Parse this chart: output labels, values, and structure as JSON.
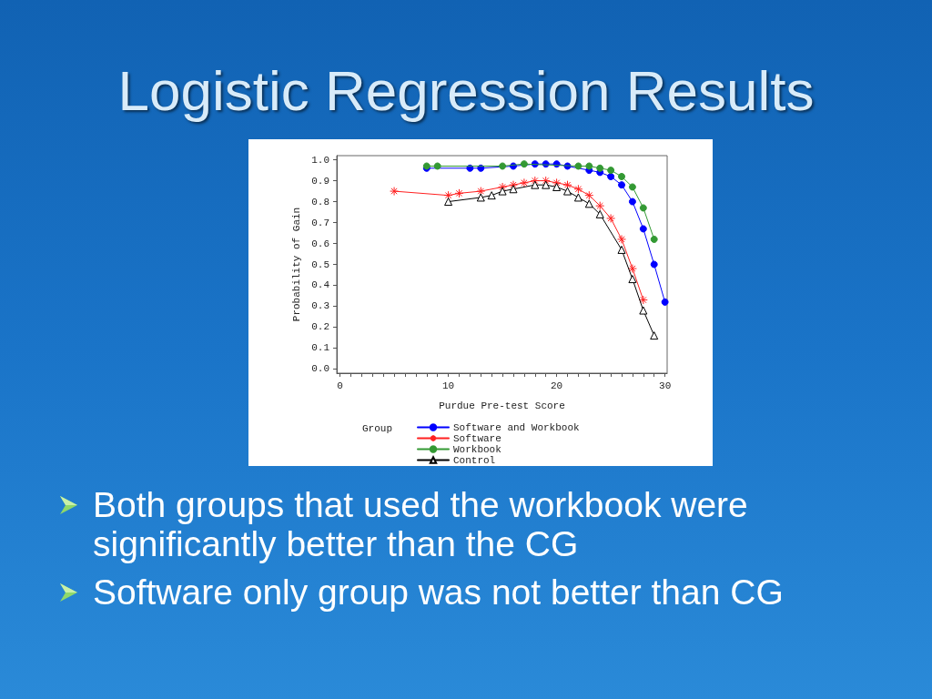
{
  "chart_data": {
    "type": "line",
    "title": "Logistic Regression Results",
    "xlabel": "Purdue Pre-test Score",
    "ylabel": "Probability of Gain",
    "legend_title": "Group",
    "xlim": [
      -0.3,
      30.2
    ],
    "ylim": [
      -0.02,
      1.02
    ],
    "xticks": [
      0,
      {
        "value": 1,
        "label": null
      },
      {
        "value": 2,
        "label": null
      },
      {
        "value": 3,
        "label": null
      },
      {
        "value": 4,
        "label": null
      },
      {
        "value": 5,
        "label": null
      },
      {
        "value": 6,
        "label": null
      },
      {
        "value": 7,
        "label": null
      },
      {
        "value": 8,
        "label": null
      },
      {
        "value": 9,
        "label": null
      },
      10,
      {
        "value": 11,
        "label": null
      },
      {
        "value": 12,
        "label": null
      },
      {
        "value": 13,
        "label": null
      },
      {
        "value": 14,
        "label": null
      },
      {
        "value": 15,
        "label": null
      },
      {
        "value": 16,
        "label": null
      },
      {
        "value": 17,
        "label": null
      },
      {
        "value": 18,
        "label": null
      },
      {
        "value": 19,
        "label": null
      },
      20,
      {
        "value": 21,
        "label": null
      },
      {
        "value": 22,
        "label": null
      },
      {
        "value": 23,
        "label": null
      },
      {
        "value": 24,
        "label": null
      },
      {
        "value": 25,
        "label": null
      },
      {
        "value": 26,
        "label": null
      },
      {
        "value": 27,
        "label": null
      },
      {
        "value": 28,
        "label": null
      },
      {
        "value": 29,
        "label": null
      },
      30
    ],
    "yticks": [
      {
        "value": 0,
        "label": "0.0"
      },
      0.1,
      0.2,
      0.3,
      0.4,
      0.5,
      0.6,
      0.7,
      0.8,
      0.9,
      {
        "value": 1,
        "label": "1.0"
      }
    ],
    "legend": "bottom",
    "series": [
      {
        "name": "Software and Workbook",
        "color": "#0000ff",
        "marker": "circle",
        "x": [
          8,
          12,
          13,
          16,
          18,
          19,
          20,
          21,
          23,
          24,
          25,
          26,
          27,
          28,
          29,
          30
        ],
        "values": [
          0.96,
          0.96,
          0.96,
          0.97,
          0.98,
          0.98,
          0.98,
          0.97,
          0.95,
          0.94,
          0.92,
          0.88,
          0.8,
          0.67,
          0.5,
          0.32
        ]
      },
      {
        "name": "Software",
        "color": "#ff2020",
        "marker": "cross",
        "x": [
          5,
          10,
          11,
          13,
          15,
          16,
          17,
          18,
          19,
          20,
          21,
          22,
          23,
          24,
          25,
          26,
          27,
          28
        ],
        "values": [
          0.85,
          0.83,
          0.84,
          0.85,
          0.87,
          0.88,
          0.89,
          0.9,
          0.9,
          0.89,
          0.88,
          0.86,
          0.83,
          0.78,
          0.72,
          0.62,
          0.48,
          0.33
        ]
      },
      {
        "name": "Workbook",
        "color": "#339933",
        "marker": "circle",
        "x": [
          8,
          9,
          15,
          17,
          22,
          23,
          24,
          25,
          26,
          27,
          28,
          29
        ],
        "values": [
          0.97,
          0.97,
          0.97,
          0.98,
          0.97,
          0.97,
          0.96,
          0.95,
          0.92,
          0.87,
          0.77,
          0.62
        ]
      },
      {
        "name": "Control",
        "color": "#000000",
        "marker": "triangle",
        "x": [
          10,
          13,
          14,
          15,
          16,
          18,
          19,
          20,
          21,
          22,
          23,
          24,
          26,
          27,
          28,
          29
        ],
        "values": [
          0.8,
          0.82,
          0.83,
          0.85,
          0.86,
          0.88,
          0.88,
          0.87,
          0.85,
          0.82,
          0.79,
          0.74,
          0.57,
          0.43,
          0.28,
          0.16
        ]
      }
    ],
    "annotations": [
      "Both groups that used the workbook were significantly better than the CG",
      "Software only group was not better than CG"
    ]
  }
}
